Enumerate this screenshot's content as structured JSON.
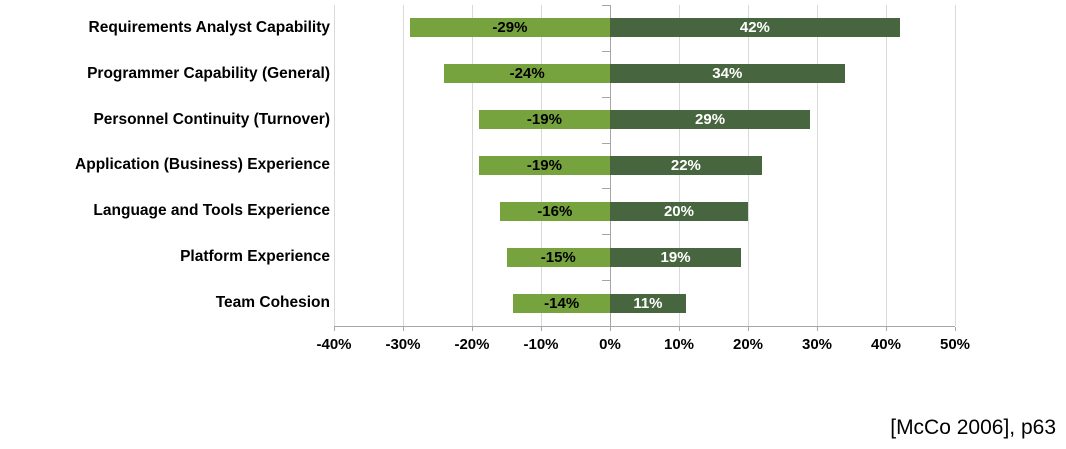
{
  "chart_data": {
    "type": "bar",
    "orientation": "horizontal",
    "title": "",
    "categories": [
      "Requirements Analyst Capability",
      "Programmer Capability (General)",
      "Personnel Continuity (Turnover)",
      "Application (Business) Experience",
      "Language and Tools Experience",
      "Platform Experience",
      "Team Cohesion"
    ],
    "series": [
      {
        "name": "decrease",
        "color": "#76a33e",
        "label_color": "#000000",
        "values": [
          -29,
          -24,
          -19,
          -19,
          -16,
          -15,
          -14
        ],
        "labels": [
          "-29%",
          "-24%",
          "-19%",
          "-19%",
          "-16%",
          "-15%",
          "-14%"
        ]
      },
      {
        "name": "increase",
        "color": "#47663f",
        "label_color": "#ffffff",
        "values": [
          42,
          34,
          29,
          22,
          20,
          19,
          11
        ],
        "labels": [
          "42%",
          "34%",
          "29%",
          "22%",
          "20%",
          "19%",
          "11%"
        ]
      }
    ],
    "x_axis": {
      "min": -40,
      "max": 50,
      "step": 10,
      "ticks": [
        {
          "value": -40,
          "label": "-40%"
        },
        {
          "value": -30,
          "label": "-30%"
        },
        {
          "value": -20,
          "label": "-20%"
        },
        {
          "value": -10,
          "label": "-10%"
        },
        {
          "value": 0,
          "label": "0%"
        },
        {
          "value": 10,
          "label": "10%"
        },
        {
          "value": 20,
          "label": "20%"
        },
        {
          "value": 30,
          "label": "30%"
        },
        {
          "value": 40,
          "label": "40%"
        },
        {
          "value": 50,
          "label": "50%"
        }
      ]
    },
    "grid": true,
    "gridline_color": "#d9d9d9",
    "axis_color": "#a6a6a6",
    "background": "#ffffff"
  },
  "citation": "[McCo 2006], p63"
}
